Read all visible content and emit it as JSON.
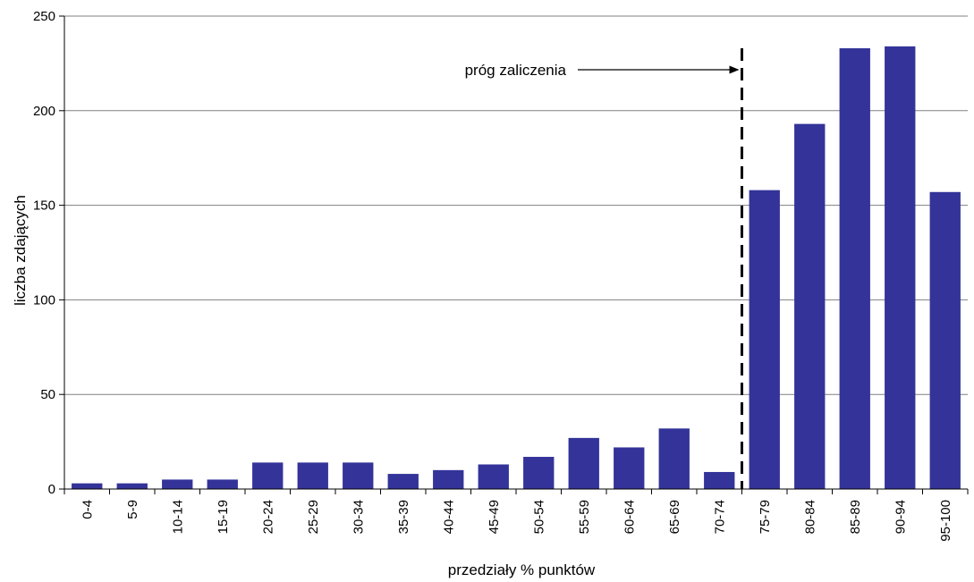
{
  "chart_data": {
    "type": "bar",
    "categories": [
      "0-4",
      "5-9",
      "10-14",
      "15-19",
      "20-24",
      "25-29",
      "30-34",
      "35-39",
      "40-44",
      "45-49",
      "50-54",
      "55-59",
      "60-64",
      "65-69",
      "70-74",
      "75-79",
      "80-84",
      "85-89",
      "90-94",
      "95-100"
    ],
    "values": [
      3,
      3,
      5,
      5,
      14,
      14,
      14,
      8,
      10,
      13,
      17,
      27,
      22,
      32,
      9,
      158,
      193,
      233,
      234,
      157
    ],
    "xlabel": "przedziały % punktów",
    "ylabel": "liczba zdających",
    "ylim": [
      0,
      250
    ],
    "yticks": [
      0,
      50,
      100,
      150,
      200,
      250
    ],
    "grid": true,
    "legend": "none",
    "bar_color": "#333399",
    "annotation": {
      "text": "próg zaliczenia",
      "threshold_between": [
        "70-74",
        "75-79"
      ]
    }
  }
}
